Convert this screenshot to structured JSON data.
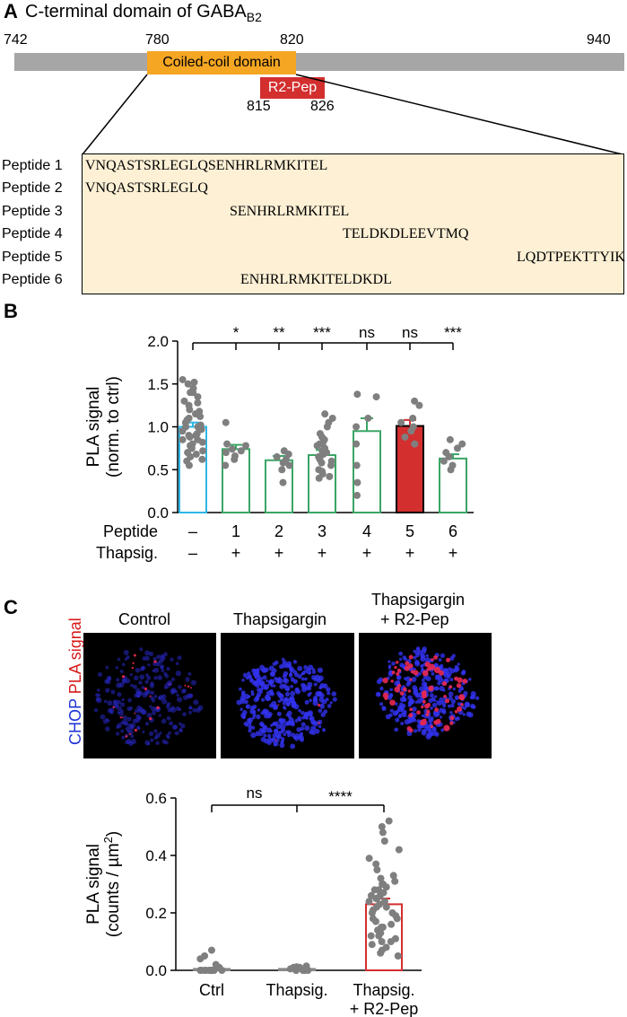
{
  "panelA": {
    "letter": "A",
    "title": "C-terminal domain of GABA",
    "title_sub": "B2",
    "positions": {
      "start": "742",
      "coil_start": "780",
      "coil_end": "820",
      "end": "940"
    },
    "coil_label": "Coiled-coil domain",
    "r2pep_label": "R2-Pep",
    "r2pep_range": {
      "start": "815",
      "end": "826"
    },
    "colors": {
      "bar": "#a6a6a6",
      "coil": "#f5a623",
      "r2pep": "#d32f2f",
      "box": "#fdf0d5"
    },
    "peptides": [
      {
        "label": "Peptide 1",
        "seq": "VNQASTSRLEGLQSENHRLRMKITEL"
      },
      {
        "label": "Peptide 2",
        "seq": "VNQASTSRLEGLQ"
      },
      {
        "label": "Peptide 3",
        "seq": "SENHRLRMKITEL"
      },
      {
        "label": "Peptide 4",
        "seq": "TELDKDLEEVTMQ"
      },
      {
        "label": "Peptide 5",
        "seq": "LQDTPEKTTYIK"
      },
      {
        "label": "Peptide 6",
        "seq": "ENHRLRMKITELDKDL"
      }
    ]
  },
  "panelB": {
    "letter": "B",
    "ylabel1": "PLA signal",
    "ylabel2": "(norm. to ctrl)",
    "row1_label": "Peptide",
    "row2_label": "Thapsig.",
    "peptide_row": [
      "–",
      "1",
      "2",
      "3",
      "4",
      "5",
      "6"
    ],
    "thapsig_row": [
      "–",
      "+",
      "+",
      "+",
      "+",
      "+",
      "+"
    ],
    "significance": [
      "*",
      "**",
      "***",
      "ns",
      "ns",
      "***"
    ]
  },
  "panelC": {
    "letter": "C",
    "image_titles": [
      "Control",
      "Thapsigargin",
      "Thapsigargin",
      "+ R2-Pep"
    ],
    "side_label_blue": "CHOP",
    "side_label_red": "PLA signal",
    "ylabel1": "PLA signal",
    "ylabel2": "(counts / µm",
    "ylabel2_sup": "2",
    "ylabel2_end": ")",
    "xlabels": [
      "Ctrl",
      "Thapsig.",
      "Thapsig.",
      "+ R2-Pep"
    ],
    "significance": [
      "ns",
      "****"
    ]
  },
  "chart_data": [
    {
      "type": "bar",
      "panel": "B",
      "categories": [
        "– / –",
        "1 / +",
        "2 / +",
        "3 / +",
        "4 / +",
        "5 / +",
        "6 / +"
      ],
      "values": [
        1.0,
        0.74,
        0.61,
        0.67,
        0.95,
        1.01,
        0.63
      ],
      "errors": [
        0.05,
        0.05,
        0.05,
        0.06,
        0.15,
        0.07,
        0.05
      ],
      "bar_colors": [
        "#2db7e6",
        "#3aa565",
        "#3aa565",
        "#3aa565",
        "#3aa565",
        "#d32f2f",
        "#3aa565"
      ],
      "bar_filled": [
        false,
        false,
        false,
        false,
        false,
        true,
        false
      ],
      "points": [
        [
          0.55,
          0.6,
          0.62,
          0.65,
          0.68,
          0.7,
          0.72,
          0.75,
          0.78,
          0.8,
          0.82,
          0.85,
          0.88,
          0.9,
          0.92,
          0.95,
          0.97,
          1.0,
          1.02,
          1.05,
          1.08,
          1.1,
          1.12,
          1.15,
          1.18,
          1.2,
          1.25,
          1.28,
          1.3,
          1.35,
          1.4,
          1.45,
          1.5,
          1.52,
          1.55,
          1.4,
          0.9,
          0.85,
          0.75,
          1.0
        ],
        [
          0.55,
          0.62,
          0.66,
          0.7,
          0.72,
          0.74,
          0.78,
          0.8,
          1.05
        ],
        [
          0.35,
          0.5,
          0.55,
          0.58,
          0.62,
          0.65,
          0.68,
          0.72
        ],
        [
          0.4,
          0.42,
          0.48,
          0.5,
          0.55,
          0.58,
          0.6,
          0.62,
          0.65,
          0.68,
          0.7,
          0.72,
          0.75,
          0.78,
          0.8,
          0.82,
          0.88,
          0.92,
          1.0,
          1.05,
          1.1,
          1.15,
          0.85,
          0.45
        ],
        [
          0.2,
          0.35,
          0.55,
          0.8,
          1.0,
          1.1,
          1.35,
          1.38
        ],
        [
          0.8,
          0.88,
          0.95,
          1.0,
          1.05,
          1.1,
          1.25,
          1.3
        ],
        [
          0.5,
          0.55,
          0.6,
          0.65,
          0.7,
          0.75,
          0.8,
          0.85
        ]
      ],
      "ylim": [
        0,
        2.0
      ],
      "yticks": [
        "0.0",
        "0.5",
        "1.0",
        "1.5",
        "2.0"
      ],
      "ylabel": "PLA signal (norm. to ctrl)"
    },
    {
      "type": "bar",
      "panel": "C",
      "categories": [
        "Ctrl",
        "Thapsig.",
        "Thapsig. + R2-Pep"
      ],
      "values": [
        0.005,
        0.005,
        0.23
      ],
      "errors": [
        0.002,
        0.001,
        0.02
      ],
      "bar_colors": [
        "#888888",
        "#888888",
        "#d32f2f"
      ],
      "points": [
        [
          0,
          0,
          0,
          0,
          0,
          0,
          0,
          0,
          0,
          0,
          0,
          0.01,
          0.02,
          0.04,
          0.07,
          0.05
        ],
        [
          0,
          0,
          0,
          0,
          0,
          0,
          0.005,
          0.01,
          0.012,
          0.015,
          0.01,
          0.005
        ],
        [
          0.05,
          0.06,
          0.07,
          0.08,
          0.09,
          0.1,
          0.11,
          0.12,
          0.13,
          0.14,
          0.15,
          0.16,
          0.17,
          0.18,
          0.19,
          0.2,
          0.21,
          0.22,
          0.23,
          0.24,
          0.25,
          0.26,
          0.27,
          0.28,
          0.29,
          0.3,
          0.31,
          0.32,
          0.33,
          0.35,
          0.37,
          0.39,
          0.42,
          0.45,
          0.48,
          0.5,
          0.52,
          0.22,
          0.24,
          0.26,
          0.2,
          0.18,
          0.28,
          0.3,
          0.25,
          0.15,
          0.12,
          0.1
        ]
      ],
      "ylim": [
        0,
        0.6
      ],
      "yticks": [
        "0.0",
        "0.2",
        "0.4",
        "0.6"
      ],
      "ylabel": "PLA signal (counts / µm2)"
    }
  ]
}
